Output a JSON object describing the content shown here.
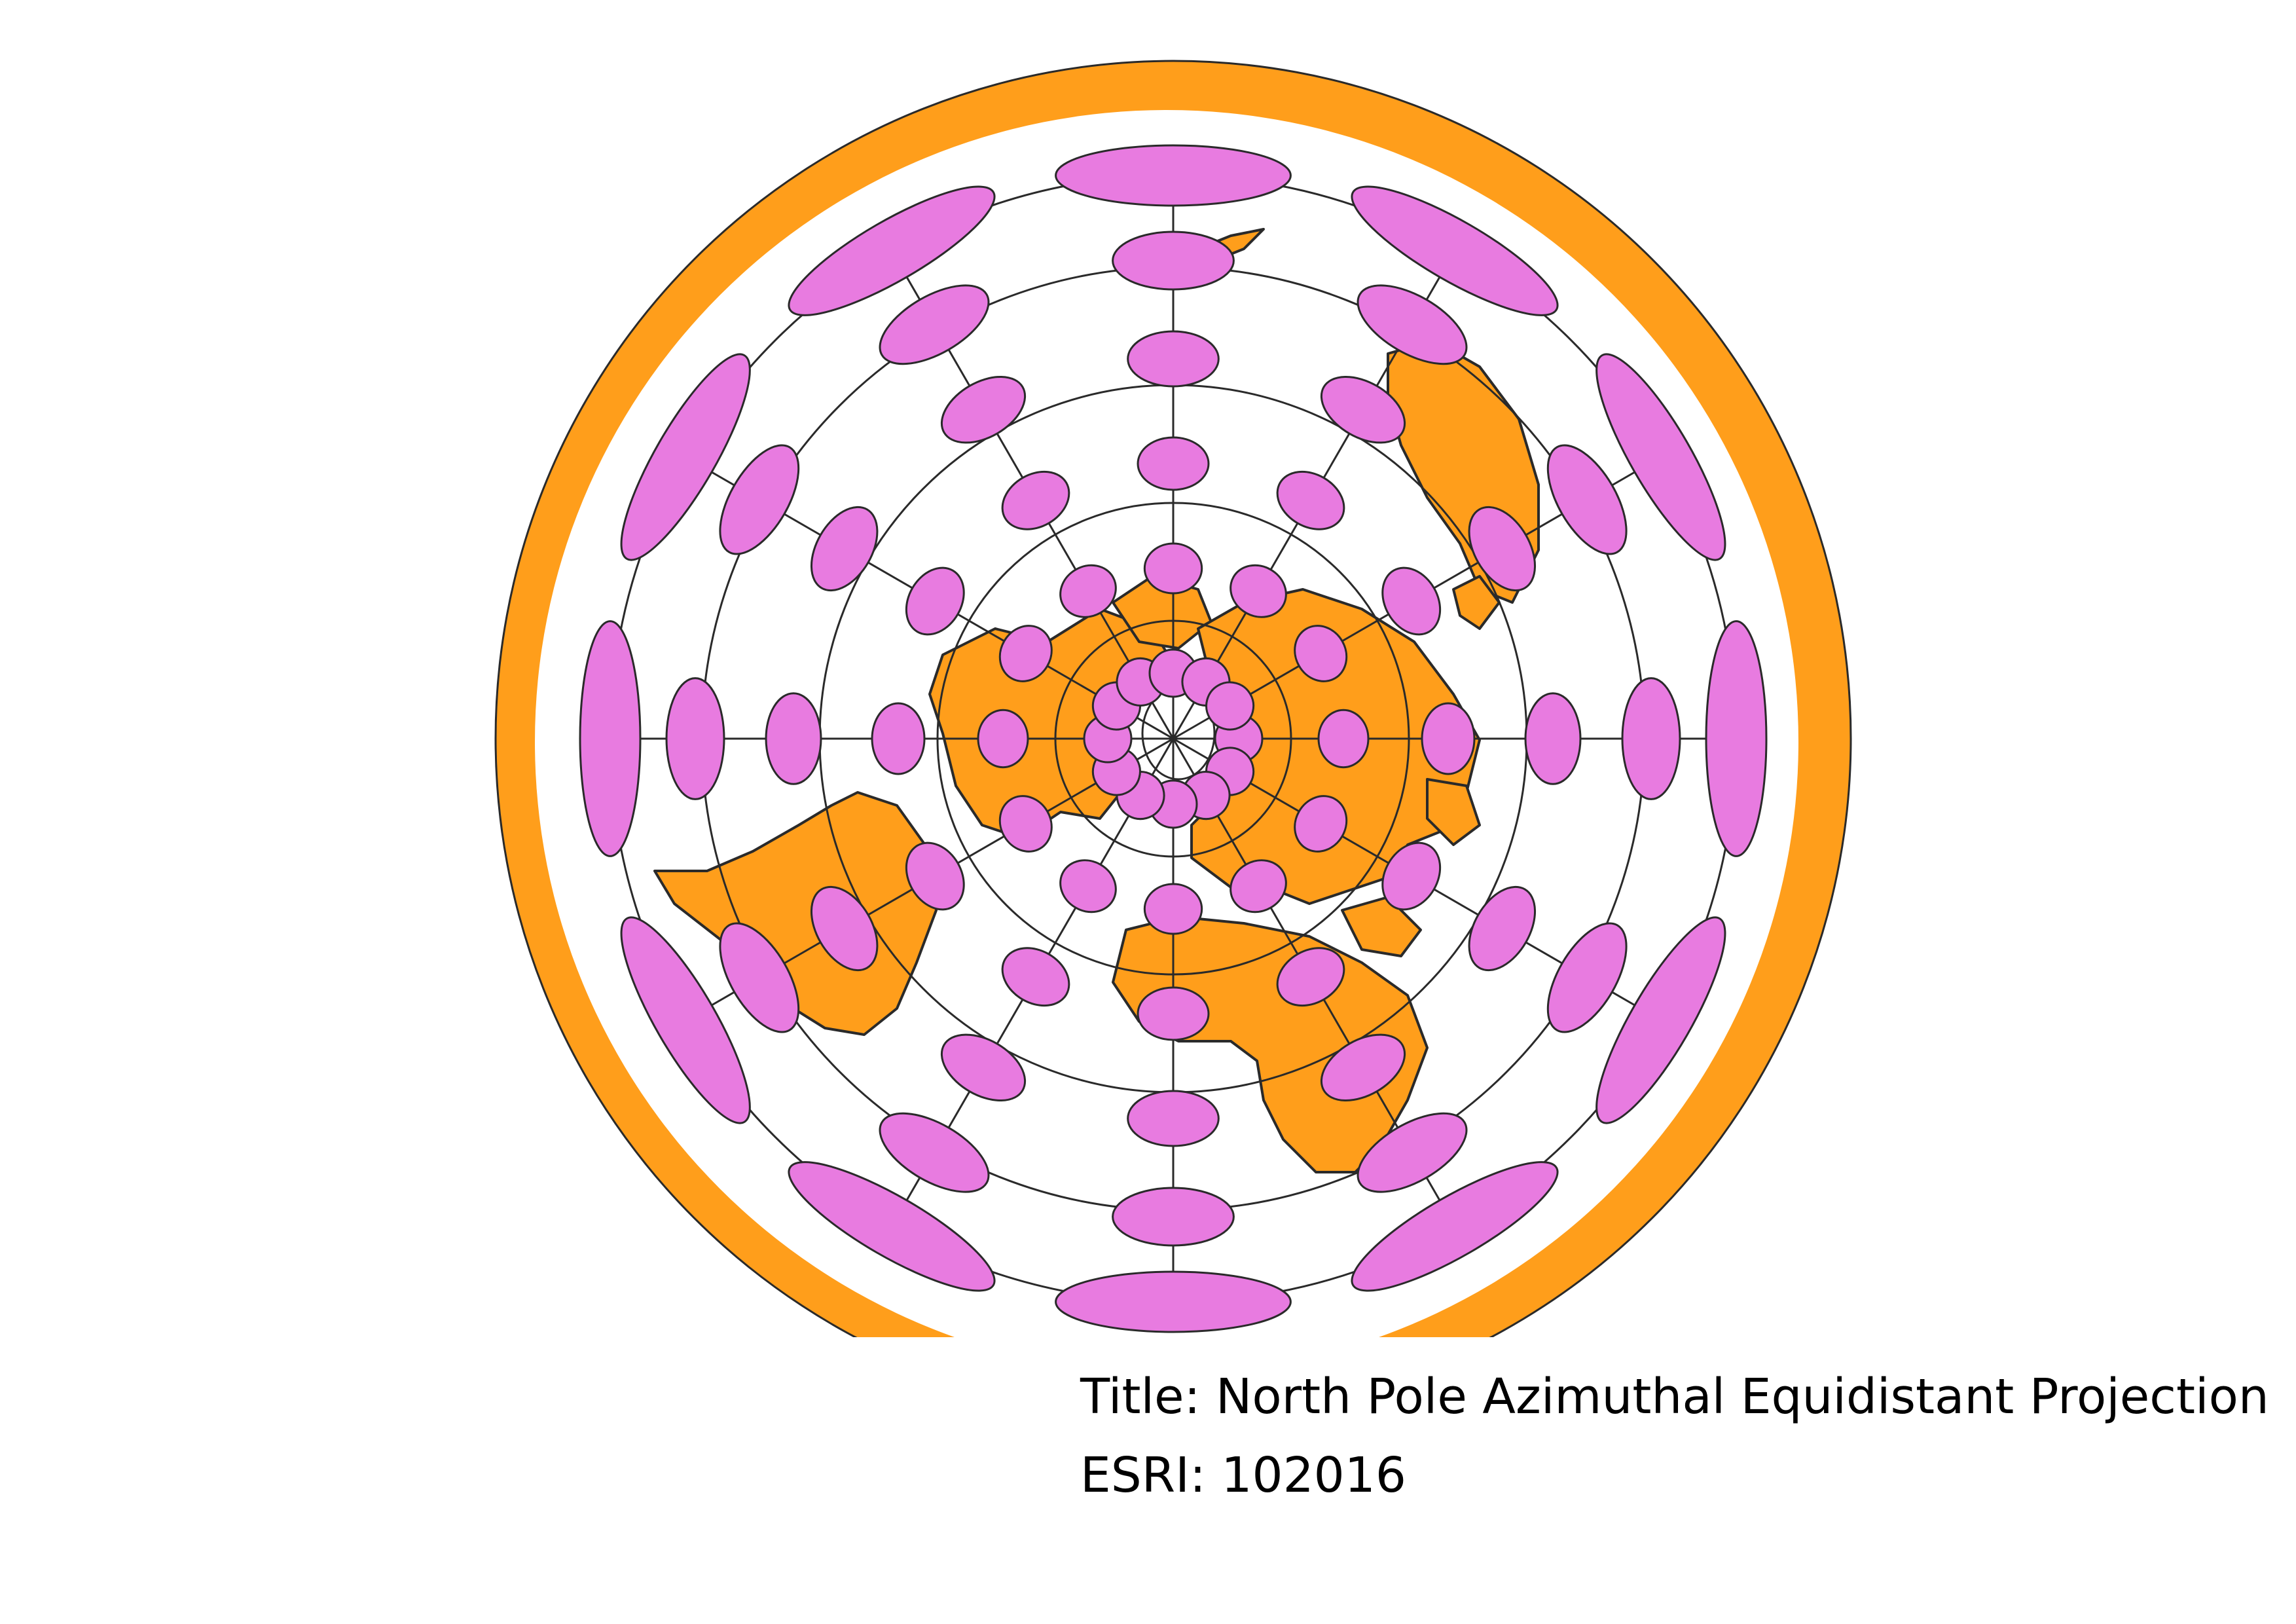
{
  "map": {
    "projection_pole": "north",
    "colors": {
      "background": "#ffffff",
      "land": "#FF9E1B",
      "land_outline": "#2a2a2a",
      "tissot_fill": "#E87BE0",
      "tissot_outline": "#2a2a2a",
      "graticule": "#2a2a2a"
    },
    "graticule": {
      "meridian_count": 12,
      "parallels_shown": 5,
      "tissot_indicatrices_per_meridian": 6
    }
  },
  "caption": {
    "title_line": "Title: North Pole Azimuthal Equidistant Projection",
    "code_line": "ESRI: 102016"
  }
}
